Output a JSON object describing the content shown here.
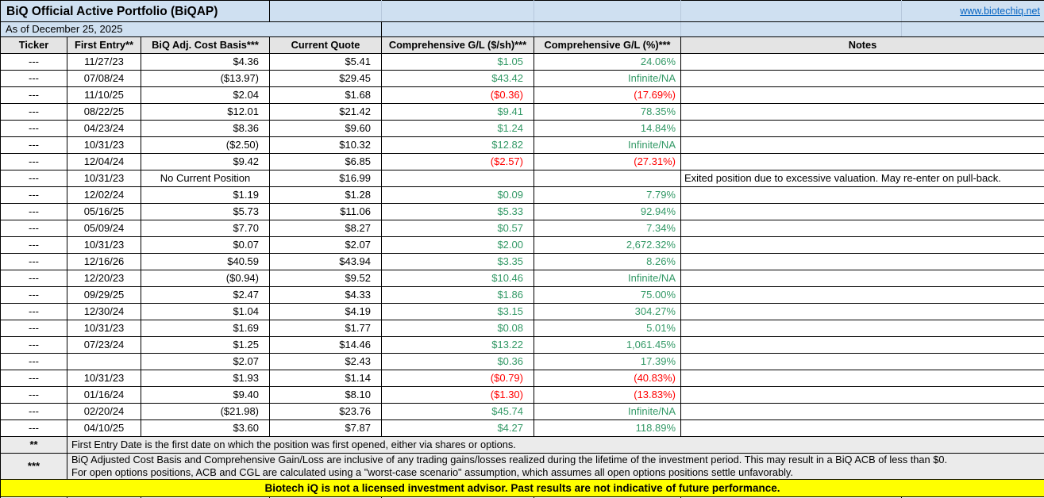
{
  "header": {
    "title": "BiQ Official Active Portfolio (BiQAP)",
    "link": "www.biotechiq.net",
    "as_of": "As of December 25, 2025"
  },
  "columns": [
    "Ticker",
    "First Entry**",
    "BiQ Adj. Cost Basis***",
    "Current Quote",
    "Comprehensive G/L ($/sh)***",
    "Comprehensive G/L (%)***",
    "Notes"
  ],
  "rows": [
    {
      "ticker": "---",
      "first_entry": "11/27/23",
      "cost_basis": "$4.36",
      "quote": "$5.41",
      "gl_sh": "$1.05",
      "gl_pct": "24.06%",
      "gl_class": "pos",
      "notes": ""
    },
    {
      "ticker": "---",
      "first_entry": "07/08/24",
      "cost_basis": "($13.97)",
      "quote": "$29.45",
      "gl_sh": "$43.42",
      "gl_pct": "Infinite/NA",
      "gl_class": "pos",
      "notes": ""
    },
    {
      "ticker": "---",
      "first_entry": "11/10/25",
      "cost_basis": "$2.04",
      "quote": "$1.68",
      "gl_sh": "($0.36)",
      "gl_pct": "(17.69%)",
      "gl_class": "neg",
      "notes": ""
    },
    {
      "ticker": "---",
      "first_entry": "08/22/25",
      "cost_basis": "$12.01",
      "quote": "$21.42",
      "gl_sh": "$9.41",
      "gl_pct": "78.35%",
      "gl_class": "pos",
      "notes": ""
    },
    {
      "ticker": "---",
      "first_entry": "04/23/24",
      "cost_basis": "$8.36",
      "quote": "$9.60",
      "gl_sh": "$1.24",
      "gl_pct": "14.84%",
      "gl_class": "pos",
      "notes": ""
    },
    {
      "ticker": "---",
      "first_entry": "10/31/23",
      "cost_basis": "($2.50)",
      "quote": "$10.32",
      "gl_sh": "$12.82",
      "gl_pct": "Infinite/NA",
      "gl_class": "pos",
      "notes": ""
    },
    {
      "ticker": "---",
      "first_entry": "12/04/24",
      "cost_basis": "$9.42",
      "quote": "$6.85",
      "gl_sh": "($2.57)",
      "gl_pct": "(27.31%)",
      "gl_class": "neg",
      "notes": ""
    },
    {
      "ticker": "---",
      "first_entry": "10/31/23",
      "cost_basis": "No Current Position",
      "acb_center": true,
      "quote": "$16.99",
      "gl_sh": "",
      "gl_pct": "",
      "gl_class": "",
      "notes": "Exited position due to excessive valuation. May re-enter on pull-back."
    },
    {
      "ticker": "---",
      "first_entry": "12/02/24",
      "cost_basis": "$1.19",
      "quote": "$1.28",
      "gl_sh": "$0.09",
      "gl_pct": "7.79%",
      "gl_class": "pos",
      "notes": ""
    },
    {
      "ticker": "---",
      "first_entry": "05/16/25",
      "cost_basis": "$5.73",
      "quote": "$11.06",
      "gl_sh": "$5.33",
      "gl_pct": "92.94%",
      "gl_class": "pos",
      "notes": ""
    },
    {
      "ticker": "---",
      "first_entry": "05/09/24",
      "cost_basis": "$7.70",
      "quote": "$8.27",
      "gl_sh": "$0.57",
      "gl_pct": "7.34%",
      "gl_class": "pos",
      "notes": ""
    },
    {
      "ticker": "---",
      "first_entry": "10/31/23",
      "cost_basis": "$0.07",
      "quote": "$2.07",
      "gl_sh": "$2.00",
      "gl_pct": "2,672.32%",
      "gl_class": "pos",
      "notes": ""
    },
    {
      "ticker": "---",
      "first_entry": "12/16/26",
      "cost_basis": "$40.59",
      "quote": "$43.94",
      "gl_sh": "$3.35",
      "gl_pct": "8.26%",
      "gl_class": "pos",
      "notes": ""
    },
    {
      "ticker": "---",
      "first_entry": "12/20/23",
      "cost_basis": "($0.94)",
      "quote": "$9.52",
      "gl_sh": "$10.46",
      "gl_pct": "Infinite/NA",
      "gl_class": "pos",
      "notes": ""
    },
    {
      "ticker": "---",
      "first_entry": "09/29/25",
      "cost_basis": "$2.47",
      "quote": "$4.33",
      "gl_sh": "$1.86",
      "gl_pct": "75.00%",
      "gl_class": "pos",
      "notes": ""
    },
    {
      "ticker": "---",
      "first_entry": "12/30/24",
      "cost_basis": "$1.04",
      "quote": "$4.19",
      "gl_sh": "$3.15",
      "gl_pct": "304.27%",
      "gl_class": "pos",
      "notes": ""
    },
    {
      "ticker": "---",
      "first_entry": "10/31/23",
      "cost_basis": "$1.69",
      "quote": "$1.77",
      "gl_sh": "$0.08",
      "gl_pct": "5.01%",
      "gl_class": "pos",
      "notes": ""
    },
    {
      "ticker": "---",
      "first_entry": "07/23/24",
      "cost_basis": "$1.25",
      "quote": "$14.46",
      "gl_sh": "$13.22",
      "gl_pct": "1,061.45%",
      "gl_class": "pos",
      "notes": ""
    },
    {
      "ticker": "---",
      "first_entry": "",
      "cost_basis": "$2.07",
      "quote": "$2.43",
      "gl_sh": "$0.36",
      "gl_pct": "17.39%",
      "gl_class": "pos",
      "notes": ""
    },
    {
      "ticker": "---",
      "first_entry": "10/31/23",
      "cost_basis": "$1.93",
      "quote": "$1.14",
      "gl_sh": "($0.79)",
      "gl_pct": "(40.83%)",
      "gl_class": "neg",
      "notes": ""
    },
    {
      "ticker": "---",
      "first_entry": "01/16/24",
      "cost_basis": "$9.40",
      "quote": "$8.10",
      "gl_sh": "($1.30)",
      "gl_pct": "(13.83%)",
      "gl_class": "neg",
      "notes": ""
    },
    {
      "ticker": "---",
      "first_entry": "02/20/24",
      "cost_basis": "($21.98)",
      "quote": "$23.76",
      "gl_sh": "$45.74",
      "gl_pct": "Infinite/NA",
      "gl_class": "pos",
      "notes": ""
    },
    {
      "ticker": "---",
      "first_entry": "04/10/25",
      "cost_basis": "$3.60",
      "quote": "$7.87",
      "gl_sh": "$4.27",
      "gl_pct": "118.89%",
      "gl_class": "pos",
      "notes": ""
    }
  ],
  "footnotes": [
    {
      "symbol": "**",
      "text": "First Entry Date is the first date on which the position was first opened, either via shares or options."
    },
    {
      "symbol": "***",
      "line1": "BiQ Adjusted Cost Basis and Comprehensive Gain/Loss are inclusive of any trading gains/losses realized during the lifetime of the investment period. This may result in a BiQ ACB of less than $0.",
      "line2": "For open options positions, ACB and CGL are calculated using a \"worst-case scenario\" assumption, which assumes all open options positions settle unfavorably."
    }
  ],
  "disclaimer": "Biotech iQ is not a licensed investment advisor. Past results are not indicative of future performance.",
  "colors": {
    "band_blue": "#cfe0f1",
    "header_gray": "#e4e4e4",
    "footnote_gray": "#ebebeb",
    "gain_green": "#339966",
    "loss_red": "#ff0000",
    "link_blue": "#0563c1",
    "disclaimer_yellow": "#ffff00"
  }
}
